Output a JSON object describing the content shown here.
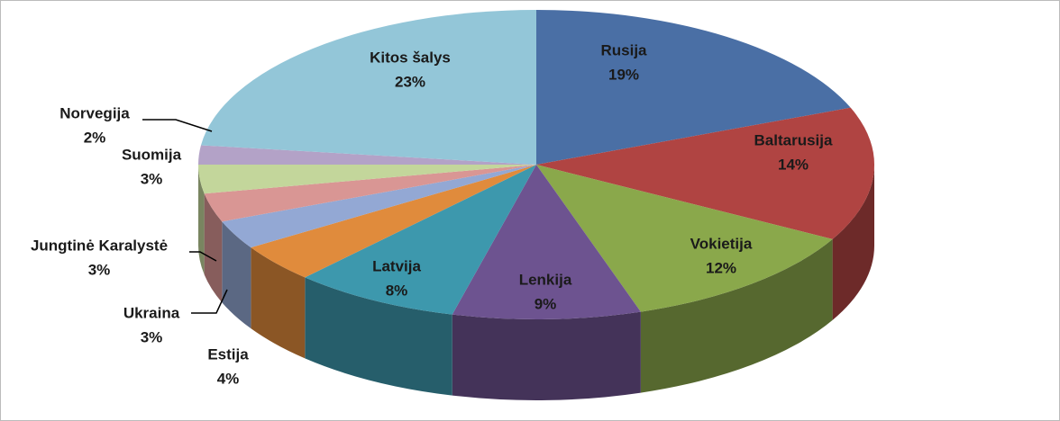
{
  "chart_data": {
    "type": "pie",
    "categories": [
      "Rusija",
      "Baltarusija",
      "Vokietija",
      "Lenkija",
      "Latvija",
      "Estija",
      "Ukraina",
      "Jungtinė Karalystė",
      "Suomija",
      "Norvegija",
      "Kitos šalys"
    ],
    "values": [
      19,
      14,
      12,
      9,
      8,
      4,
      3,
      3,
      3,
      2,
      23
    ],
    "value_labels": [
      "19%",
      "14%",
      "12%",
      "9%",
      "8%",
      "4%",
      "3%",
      "3%",
      "3%",
      "2%",
      "23%"
    ],
    "colors": [
      "#4a6fa5",
      "#b04442",
      "#8aa84b",
      "#6d5390",
      "#3d98ad",
      "#e08b3c",
      "#93a8d4",
      "#d99694",
      "#c3d69b",
      "#b3a2c7",
      "#93c6d8"
    ]
  }
}
